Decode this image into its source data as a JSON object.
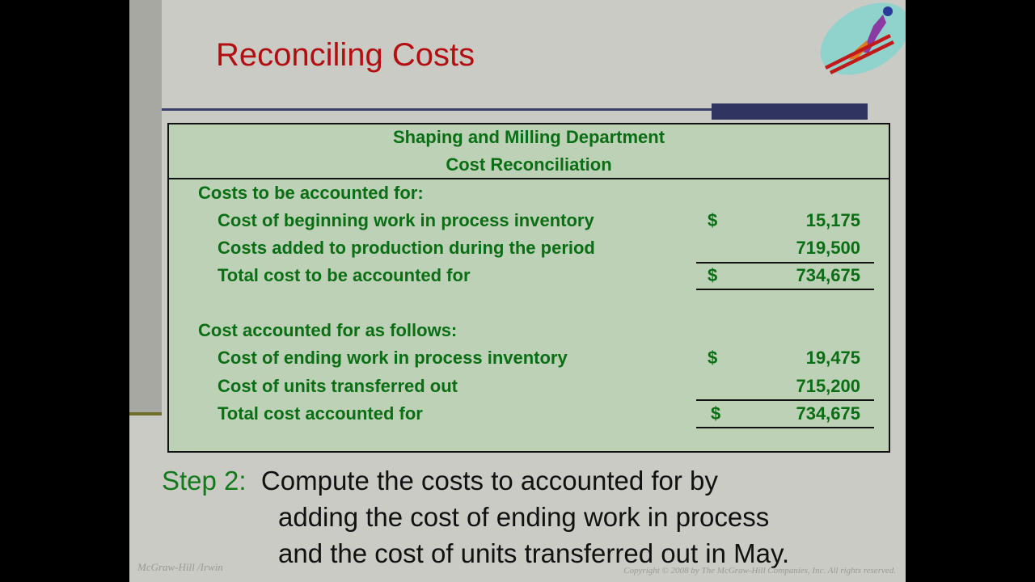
{
  "title": "Reconciling Costs",
  "table": {
    "heading1": "Shaping and Milling Department",
    "heading2": "Cost Reconciliation",
    "section1": "Costs to be accounted for:",
    "rows1": [
      {
        "label": "Cost of beginning work in process inventory",
        "dollar": "$",
        "amount": "15,175"
      },
      {
        "label": "Costs added to production during the period",
        "dollar": "",
        "amount": "719,500"
      },
      {
        "label": "Total cost to be accounted for",
        "dollar": "$",
        "amount": "734,675"
      }
    ],
    "section2": "Cost accounted for as follows:",
    "rows2": [
      {
        "label": "Cost of ending work in process inventory",
        "dollar": "$",
        "amount": "19,475"
      },
      {
        "label": "Cost of units transferred out",
        "dollar": "",
        "amount": "715,200"
      },
      {
        "label": "Total cost accounted for",
        "dollar": "$",
        "amount": "734,675"
      }
    ]
  },
  "step": {
    "label": "Step 2:",
    "line1": "Compute the costs to accounted for by",
    "line2": "adding the cost of ending work in process",
    "line3": "and the cost of units transferred out in May."
  },
  "footer": {
    "left": "McGraw-Hill /Irwin",
    "right": "Copyright © 2008 by The McGraw-Hill Companies, Inc. All rights reserved."
  },
  "logo_icon": "ski-jumper-icon"
}
